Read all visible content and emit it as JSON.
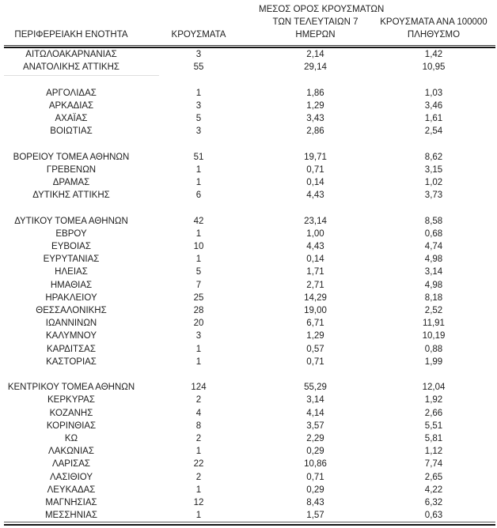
{
  "page": {
    "background": "#ffffff",
    "text_color": "#1e1e1e",
    "rule_color_thick": "#141414",
    "rule_color_thin": "#3c3c3c"
  },
  "table": {
    "headers": {
      "region": "ΠΕΡΙΦΕΡΕΙΑΚΗ ΕΝΟΤΗΤΑ",
      "cases": "ΚΡΟΥΣΜΑΤΑ",
      "avg7_lines": [
        "ΜΕΣΟΣ ΟΡΟΣ ΚΡΟΥΣΜΑΤΩΝ",
        "ΤΩΝ ΤΕΛΕΥΤΑΙΩΝ 7",
        "ΗΜΕΡΩΝ"
      ],
      "per100k_lines": [
        "ΚΡΟΥΣΜΑΤΑ ΑΝΑ 100000",
        "ΠΛΗΘΥΣΜΟ"
      ]
    },
    "rows": [
      {
        "region": "ΑΙΤΩΛΟΑΚΑΡΝΑΝΙΑΣ",
        "cases": "3",
        "avg7": "2,14",
        "per100k": "1,42"
      },
      {
        "region": "ΑΝΑΤΟΛΙΚΗΣ ΑΤΤΙΚΗΣ",
        "cases": "55",
        "avg7": "29,14",
        "per100k": "10,95"
      },
      null,
      {
        "region": "ΑΡΓΟΛΙΔΑΣ",
        "cases": "1",
        "avg7": "1,86",
        "per100k": "1,03"
      },
      {
        "region": "ΑΡΚΑΔΙΑΣ",
        "cases": "3",
        "avg7": "1,29",
        "per100k": "3,46"
      },
      {
        "region": "ΑΧΑΪΑΣ",
        "cases": "5",
        "avg7": "3,43",
        "per100k": "1,61"
      },
      {
        "region": "ΒΟΙΩΤΙΑΣ",
        "cases": "3",
        "avg7": "2,86",
        "per100k": "2,54"
      },
      null,
      {
        "region": "ΒΟΡΕΙΟΥ ΤΟΜΕΑ ΑΘΗΝΩΝ",
        "cases": "51",
        "avg7": "19,71",
        "per100k": "8,62"
      },
      {
        "region": "ΓΡΕΒΕΝΩΝ",
        "cases": "1",
        "avg7": "0,71",
        "per100k": "3,15"
      },
      {
        "region": "ΔΡΑΜΑΣ",
        "cases": "1",
        "avg7": "0,14",
        "per100k": "1,02"
      },
      {
        "region": "ΔΥΤΙΚΗΣ ΑΤΤΙΚΗΣ",
        "cases": "6",
        "avg7": "4,43",
        "per100k": "3,73"
      },
      null,
      {
        "region": "ΔΥΤΙΚΟΥ ΤΟΜΕΑ ΑΘΗΝΩΝ",
        "cases": "42",
        "avg7": "23,14",
        "per100k": "8,58"
      },
      {
        "region": "ΕΒΡΟΥ",
        "cases": "1",
        "avg7": "1,00",
        "per100k": "0,68"
      },
      {
        "region": "ΕΥΒΟΙΑΣ",
        "cases": "10",
        "avg7": "4,43",
        "per100k": "4,74"
      },
      {
        "region": "ΕΥΡΥΤΑΝΙΑΣ",
        "cases": "1",
        "avg7": "0,14",
        "per100k": "4,98"
      },
      {
        "region": "ΗΛΕΙΑΣ",
        "cases": "5",
        "avg7": "1,71",
        "per100k": "3,14"
      },
      {
        "region": "ΗΜΑΘΙΑΣ",
        "cases": "7",
        "avg7": "2,71",
        "per100k": "4,98"
      },
      {
        "region": "ΗΡΑΚΛΕΙΟΥ",
        "cases": "25",
        "avg7": "14,29",
        "per100k": "8,18"
      },
      {
        "region": "ΘΕΣΣΑΛΟΝΙΚΗΣ",
        "cases": "28",
        "avg7": "19,00",
        "per100k": "2,52"
      },
      {
        "region": "ΙΩΑΝΝΙΝΩΝ",
        "cases": "20",
        "avg7": "6,71",
        "per100k": "11,91"
      },
      {
        "region": "ΚΑΛΥΜΝΟΥ",
        "cases": "3",
        "avg7": "1,29",
        "per100k": "10,19"
      },
      {
        "region": "ΚΑΡΔΙΤΣΑΣ",
        "cases": "1",
        "avg7": "0,57",
        "per100k": "0,88"
      },
      {
        "region": "ΚΑΣΤΟΡΙΑΣ",
        "cases": "1",
        "avg7": "0,71",
        "per100k": "1,99"
      },
      null,
      {
        "region": "ΚΕΝΤΡΙΚΟΥ ΤΟΜΕΑ ΑΘΗΝΩΝ",
        "cases": "124",
        "avg7": "55,29",
        "per100k": "12,04"
      },
      {
        "region": "ΚΕΡΚΥΡΑΣ",
        "cases": "2",
        "avg7": "3,14",
        "per100k": "1,92"
      },
      {
        "region": "ΚΟΖΑΝΗΣ",
        "cases": "4",
        "avg7": "4,14",
        "per100k": "2,66"
      },
      {
        "region": "ΚΟΡΙΝΘΙΑΣ",
        "cases": "8",
        "avg7": "3,57",
        "per100k": "5,51"
      },
      {
        "region": "ΚΩ",
        "cases": "2",
        "avg7": "2,29",
        "per100k": "5,81"
      },
      {
        "region": "ΛΑΚΩΝΙΑΣ",
        "cases": "1",
        "avg7": "0,29",
        "per100k": "1,12"
      },
      {
        "region": "ΛΑΡΙΣΑΣ",
        "cases": "22",
        "avg7": "10,86",
        "per100k": "7,74"
      },
      {
        "region": "ΛΑΣΙΘΙΟΥ",
        "cases": "2",
        "avg7": "0,71",
        "per100k": "2,65"
      },
      {
        "region": "ΛΕΥΚΑΔΑΣ",
        "cases": "1",
        "avg7": "0,29",
        "per100k": "4,22"
      },
      {
        "region": "ΜΑΓΝΗΣΙΑΣ",
        "cases": "12",
        "avg7": "8,43",
        "per100k": "6,32"
      },
      {
        "region": "ΜΕΣΣΗΝΙΑΣ",
        "cases": "1",
        "avg7": "1,57",
        "per100k": "0,63"
      }
    ]
  }
}
